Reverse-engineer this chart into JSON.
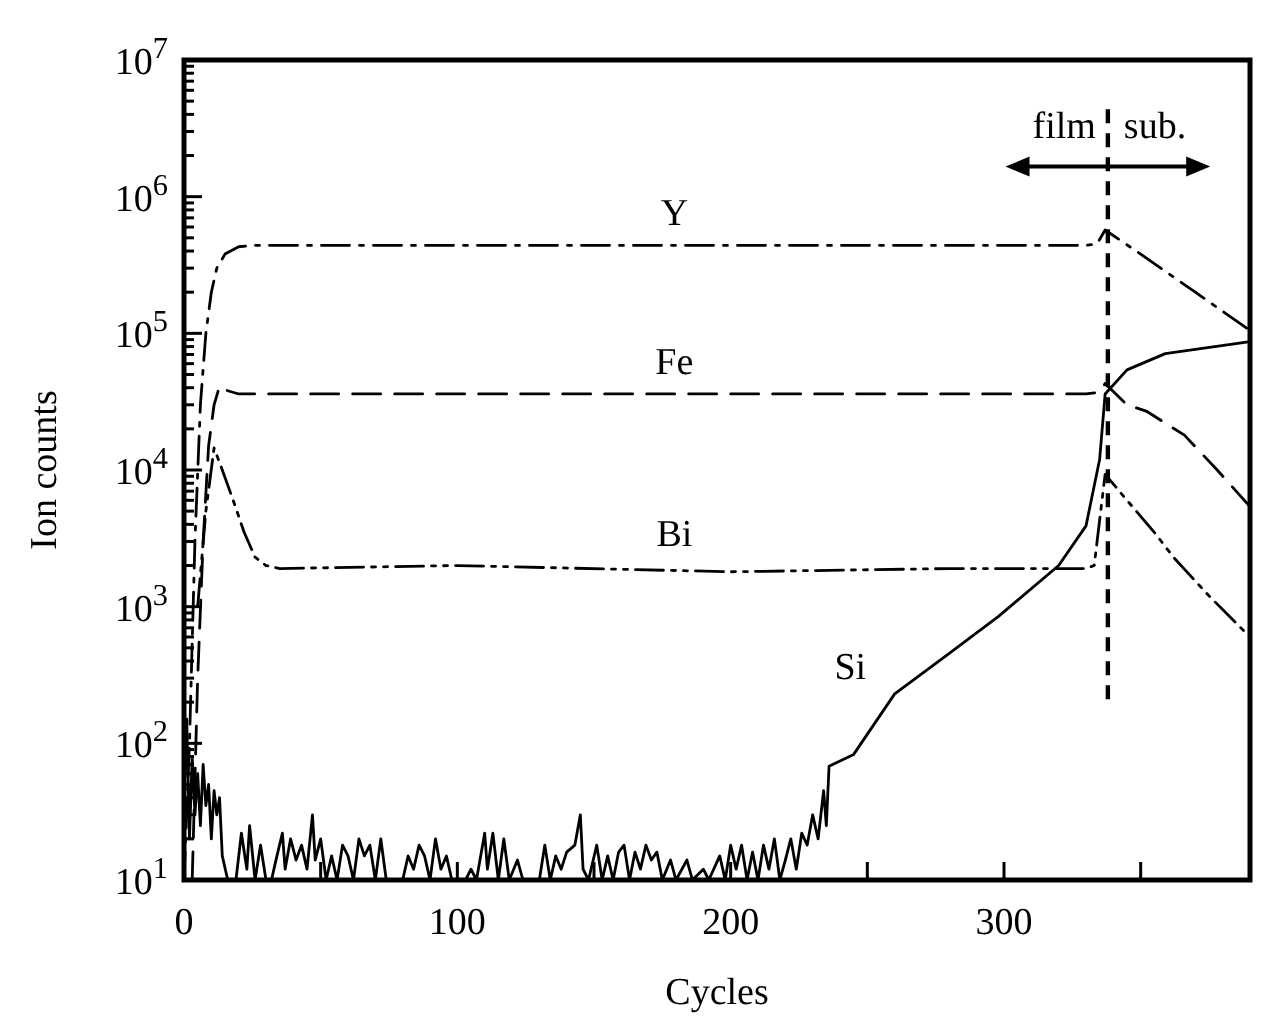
{
  "chart_data": {
    "type": "line",
    "xlabel": "Cycles",
    "ylabel": "Ion counts",
    "log": "y",
    "xlim": [
      0,
      390
    ],
    "xticks": [
      0,
      {
        "value": 50,
        "label": null
      },
      100,
      {
        "value": 150,
        "label": null
      },
      200,
      {
        "value": 250,
        "label": null
      },
      300,
      {
        "value": 350,
        "label": null
      }
    ],
    "ylim": [
      10,
      10000000
    ],
    "yticks": [
      {
        "value": 10,
        "label": "10$^{1}$"
      },
      {
        "value": 20,
        "label": null
      },
      {
        "value": 30,
        "label": null
      },
      {
        "value": 40,
        "label": null
      },
      {
        "value": 50,
        "label": null
      },
      {
        "value": 60,
        "label": null
      },
      {
        "value": 70,
        "label": null
      },
      {
        "value": 80,
        "label": null
      },
      {
        "value": 90,
        "label": null
      },
      {
        "value": 100,
        "label": "10$^{2}$"
      },
      {
        "value": 200,
        "label": null
      },
      {
        "value": 300,
        "label": null
      },
      {
        "value": 400,
        "label": null
      },
      {
        "value": 500,
        "label": null
      },
      {
        "value": 600,
        "label": null
      },
      {
        "value": 700,
        "label": null
      },
      {
        "value": 800,
        "label": null
      },
      {
        "value": 900,
        "label": null
      },
      {
        "value": 1000,
        "label": "10$^{3}$"
      },
      {
        "value": 2000,
        "label": null
      },
      {
        "value": 3000,
        "label": null
      },
      {
        "value": 4000,
        "label": null
      },
      {
        "value": 5000,
        "label": null
      },
      {
        "value": 6000,
        "label": null
      },
      {
        "value": 7000,
        "label": null
      },
      {
        "value": 8000,
        "label": null
      },
      {
        "value": 9000,
        "label": null
      },
      {
        "value": 10000,
        "label": "10$^{4}$"
      },
      {
        "value": 20000,
        "label": null
      },
      {
        "value": 30000,
        "label": null
      },
      {
        "value": 40000,
        "label": null
      },
      {
        "value": 50000,
        "label": null
      },
      {
        "value": 60000,
        "label": null
      },
      {
        "value": 70000,
        "label": null
      },
      {
        "value": 80000,
        "label": null
      },
      {
        "value": 90000,
        "label": null
      },
      {
        "value": 100000,
        "label": "10$^{5}$"
      },
      {
        "value": 200000,
        "label": null
      },
      {
        "value": 300000,
        "label": null
      },
      {
        "value": 400000,
        "label": null
      },
      {
        "value": 500000,
        "label": null
      },
      {
        "value": 600000,
        "label": null
      },
      {
        "value": 700000,
        "label": null
      },
      {
        "value": 800000,
        "label": null
      },
      {
        "value": 900000,
        "label": null
      },
      {
        "value": 1000000,
        "label": "10$^{6}$"
      },
      {
        "value": 2000000,
        "label": null
      },
      {
        "value": 3000000,
        "label": null
      },
      {
        "value": 4000000,
        "label": null
      },
      {
        "value": 5000000,
        "label": null
      },
      {
        "value": 6000000,
        "label": null
      },
      {
        "value": 7000000,
        "label": null
      },
      {
        "value": 8000000,
        "label": null
      },
      {
        "value": 9000000,
        "label": null
      },
      {
        "value": 10000000,
        "label": "10$^{7}$"
      }
    ],
    "grid": false,
    "series": [
      {
        "name": "Y",
        "color": "#000000",
        "line_style": "dashdot",
        "x": [
          0,
          2,
          4,
          6,
          8,
          10,
          12,
          15,
          20,
          25,
          330,
          334,
          337,
          350,
          370,
          390
        ],
        "values": [
          10,
          100,
          3000,
          30000,
          100000,
          200000,
          300000,
          380000,
          430000,
          440000,
          440000,
          450000,
          570000,
          380000,
          200000,
          105000
        ]
      },
      {
        "name": "Fe",
        "color": "#000000",
        "line_style": "dashed",
        "x": [
          3,
          5,
          7,
          9,
          11,
          13,
          16,
          20,
          330,
          335,
          337,
          345,
          352,
          366,
          378,
          390
        ],
        "values": [
          10,
          300,
          3000,
          15000,
          30000,
          41000,
          38000,
          36000,
          36000,
          37000,
          43000,
          30000,
          27000,
          18000,
          10000,
          5400
        ]
      },
      {
        "name": "Bi",
        "color": "#000000",
        "line_style": "dashdotdot",
        "x": [
          5,
          8,
          11,
          14,
          18,
          22,
          26,
          30,
          35,
          100,
          200,
          280,
          330,
          333,
          337,
          345,
          355,
          362,
          375,
          390
        ],
        "values": [
          1000,
          5000,
          14500,
          10000,
          6000,
          3500,
          2300,
          2000,
          1900,
          2000,
          1800,
          1900,
          1900,
          2000,
          9300,
          6000,
          3500,
          2300,
          1200,
          600
        ]
      },
      {
        "name": "Si",
        "color": "#000000",
        "line_style": "solid",
        "x": [
          0,
          1,
          2,
          3,
          4,
          5,
          6,
          7,
          8,
          9,
          10,
          11,
          12,
          13,
          14,
          16,
          19,
          21,
          23,
          24,
          26,
          28,
          30,
          32,
          34,
          36,
          37,
          39,
          41,
          43,
          45,
          47,
          48,
          50,
          52,
          54,
          56,
          58,
          60,
          62,
          64,
          66,
          68,
          70,
          72,
          74,
          80,
          82,
          84,
          86,
          88,
          90,
          92,
          94,
          96,
          98,
          103,
          105,
          107,
          110,
          111,
          113,
          115,
          117,
          119,
          122,
          124,
          130,
          132,
          134,
          136,
          138,
          140,
          143,
          145,
          146,
          148,
          151,
          153,
          155,
          157,
          159,
          161,
          163,
          165,
          167,
          169,
          171,
          173,
          175,
          178,
          180,
          184,
          186,
          190,
          192,
          196,
          198,
          200,
          202,
          204,
          206,
          208,
          210,
          212,
          214,
          216,
          218,
          220,
          222,
          224,
          226,
          228,
          230,
          232,
          234,
          235,
          236,
          245,
          260,
          279,
          298,
          320,
          330,
          335,
          337,
          345,
          359,
          390
        ],
        "values": [
          40,
          150,
          20,
          80,
          30,
          60,
          25,
          70,
          35,
          50,
          20,
          45,
          30,
          40,
          15,
          10,
          10,
          22,
          12,
          25,
          10,
          18,
          10,
          10,
          15,
          22,
          12,
          20,
          14,
          18,
          12,
          30,
          14,
          20,
          10,
          15,
          10,
          18,
          15,
          10,
          20,
          15,
          18,
          10,
          20,
          10,
          10,
          15,
          12,
          18,
          15,
          10,
          20,
          12,
          15,
          10,
          10,
          12,
          10,
          22,
          12,
          22,
          10,
          20,
          10,
          14,
          10,
          10,
          18,
          10,
          15,
          12,
          16,
          18,
          30,
          12,
          10,
          18,
          10,
          15,
          10,
          16,
          18,
          10,
          16,
          12,
          18,
          14,
          16,
          10,
          14,
          10,
          14,
          10,
          12,
          10,
          15,
          10,
          18,
          12,
          18,
          10,
          16,
          10,
          18,
          12,
          20,
          10,
          14,
          20,
          12,
          22,
          18,
          30,
          20,
          45,
          25,
          68,
          83,
          230,
          440,
          850,
          2000,
          3900,
          12000,
          36000,
          54000,
          71000,
          87000
        ]
      }
    ],
    "ref_lines": [
      {
        "axis": "x",
        "value": 338,
        "line_style": "dashed"
      }
    ],
    "annotations": [
      "film",
      "sub."
    ]
  }
}
